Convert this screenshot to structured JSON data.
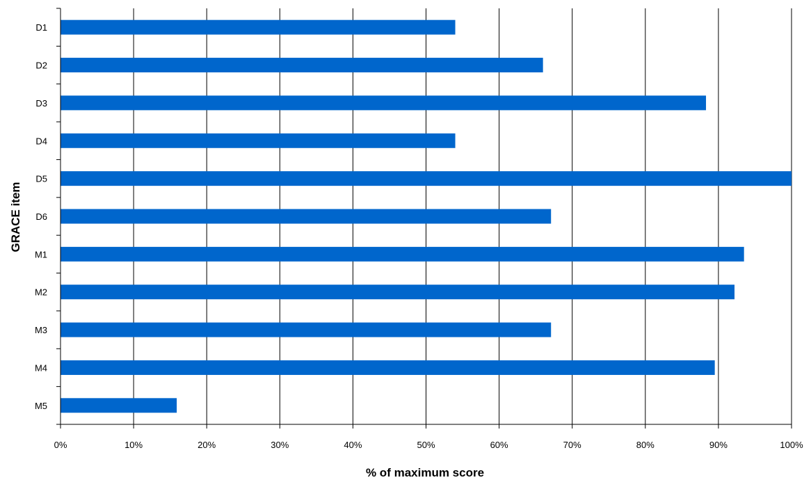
{
  "chart_data": {
    "type": "bar",
    "orientation": "horizontal",
    "categories": [
      "D1",
      "D2",
      "D3",
      "D4",
      "D5",
      "D6",
      "M1",
      "M2",
      "M3",
      "M4",
      "M5"
    ],
    "values": [
      54,
      66,
      88.3,
      54,
      100,
      67.1,
      93.5,
      92.2,
      67.1,
      89.5,
      15.9
    ],
    "xlabel": "% of maximum score",
    "ylabel": "GRACE item",
    "xlim": [
      0,
      100
    ],
    "xticks": [
      "0%",
      "10%",
      "20%",
      "30%",
      "40%",
      "50%",
      "60%",
      "70%",
      "80%",
      "90%",
      "100%"
    ],
    "grid": "vertical",
    "bar_color": "#0066CC"
  }
}
